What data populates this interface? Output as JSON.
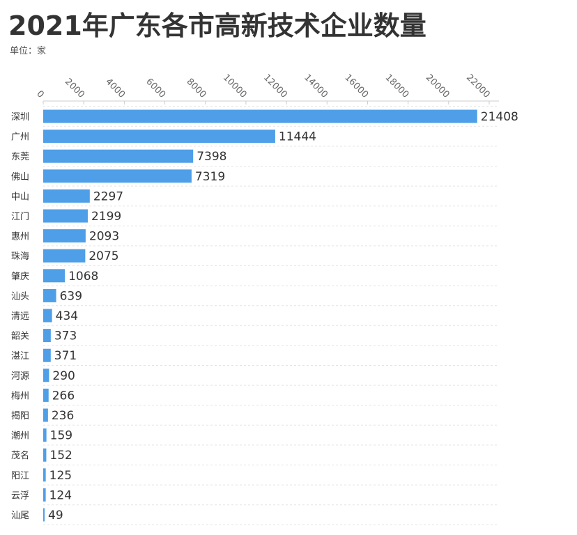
{
  "chart_data": {
    "type": "bar",
    "orientation": "horizontal",
    "title": "2021年广东各市高新技术企业数量",
    "subtitle": "单位：家",
    "categories": [
      "深圳",
      "广州",
      "东莞",
      "佛山",
      "中山",
      "江门",
      "惠州",
      "珠海",
      "肇庆",
      "汕头",
      "清远",
      "韶关",
      "湛江",
      "河源",
      "梅州",
      "揭阳",
      "潮州",
      "茂名",
      "阳江",
      "云浮",
      "汕尾"
    ],
    "values": [
      21408,
      11444,
      7398,
      7319,
      2297,
      2199,
      2093,
      2075,
      1068,
      639,
      434,
      373,
      371,
      290,
      266,
      236,
      159,
      152,
      125,
      124,
      49
    ],
    "xlim": [
      0,
      22000
    ],
    "xticks": [
      0,
      2000,
      4000,
      6000,
      8000,
      10000,
      12000,
      14000,
      16000,
      18000,
      20000,
      22000
    ],
    "axis_position": "top",
    "grid": true,
    "legend": "none",
    "bar_color": "#4e9fe8"
  }
}
